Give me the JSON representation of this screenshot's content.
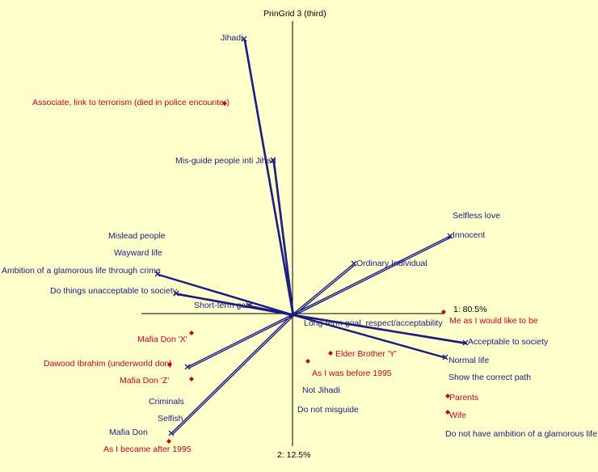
{
  "title": "PrinGrid 3 (third)",
  "axes": {
    "horizontal_label": "1: 80.5%",
    "vertical_label": "2: 12.5%"
  },
  "colors": {
    "background": "#ffffcc",
    "construct": "#1a1a80",
    "element": "#c8001e",
    "axis": "#000000"
  },
  "constructs": [
    {
      "label": "Jihadi"
    },
    {
      "label": "Mis-guide people inti Jihad"
    },
    {
      "label": "Selfless love"
    },
    {
      "label": "Innocent"
    },
    {
      "label": "Ordinary Individual"
    },
    {
      "label": "Mislead people"
    },
    {
      "label": "Wayward life"
    },
    {
      "label": "Ambition of a glamorous life through crime"
    },
    {
      "label": "Do things unacceptable to society"
    },
    {
      "label": "Short-term gain"
    },
    {
      "label": "Long-term goal, respect/acceptability"
    },
    {
      "label": "Acceptable to society"
    },
    {
      "label": "Normal life"
    },
    {
      "label": "Show the correct path"
    },
    {
      "label": "Do not have ambition of a glamorous life"
    },
    {
      "label": "Not Jihadi"
    },
    {
      "label": "Do not misguide"
    },
    {
      "label": "Criminals"
    },
    {
      "label": "Selfish"
    },
    {
      "label": "Mafia Don"
    }
  ],
  "elements": [
    {
      "label": "Associate, link to terrorism (died in police encounter)"
    },
    {
      "label": "Me as I would like to be"
    },
    {
      "label": "Elder Brother 'Y'"
    },
    {
      "label": "As I was before 1995"
    },
    {
      "label": "Parents"
    },
    {
      "label": "Wife"
    },
    {
      "label": "Mafia Don 'X'"
    },
    {
      "label": "Dawood Ibrahim (underworld don)"
    },
    {
      "label": "Mafia Don 'Z'"
    },
    {
      "label": "As I became after 1995"
    }
  ]
}
